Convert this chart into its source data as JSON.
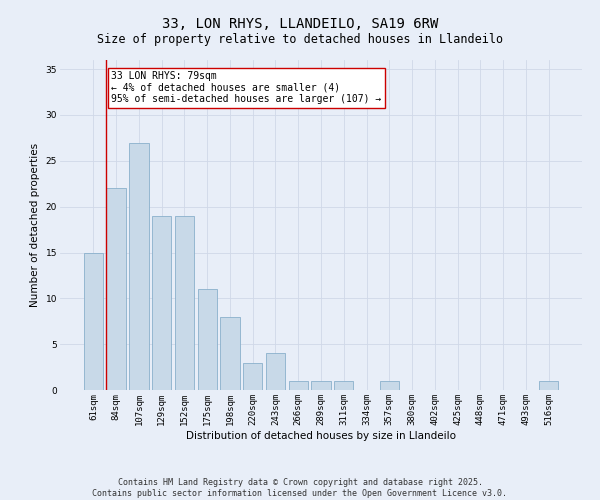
{
  "title": "33, LON RHYS, LLANDEILO, SA19 6RW",
  "subtitle": "Size of property relative to detached houses in Llandeilo",
  "xlabel": "Distribution of detached houses by size in Llandeilo",
  "ylabel": "Number of detached properties",
  "categories": [
    "61sqm",
    "84sqm",
    "107sqm",
    "129sqm",
    "152sqm",
    "175sqm",
    "198sqm",
    "220sqm",
    "243sqm",
    "266sqm",
    "289sqm",
    "311sqm",
    "334sqm",
    "357sqm",
    "380sqm",
    "402sqm",
    "425sqm",
    "448sqm",
    "471sqm",
    "493sqm",
    "516sqm"
  ],
  "values": [
    15,
    22,
    27,
    19,
    19,
    11,
    8,
    3,
    4,
    1,
    1,
    1,
    0,
    1,
    0,
    0,
    0,
    0,
    0,
    0,
    1
  ],
  "bar_color": "#c8d9e8",
  "bar_edge_color": "#8ab0cc",
  "highlight_bar_index": 1,
  "highlight_line_color": "#cc0000",
  "annotation_text": "33 LON RHYS: 79sqm\n← 4% of detached houses are smaller (4)\n95% of semi-detached houses are larger (107) →",
  "annotation_box_color": "#ffffff",
  "annotation_box_edge_color": "#cc0000",
  "ylim": [
    0,
    36
  ],
  "yticks": [
    0,
    5,
    10,
    15,
    20,
    25,
    30,
    35
  ],
  "grid_color": "#d0d8e8",
  "background_color": "#e8eef8",
  "footer_text": "Contains HM Land Registry data © Crown copyright and database right 2025.\nContains public sector information licensed under the Open Government Licence v3.0.",
  "title_fontsize": 10,
  "subtitle_fontsize": 8.5,
  "axis_label_fontsize": 7.5,
  "tick_fontsize": 6.5,
  "annotation_fontsize": 7,
  "footer_fontsize": 6
}
